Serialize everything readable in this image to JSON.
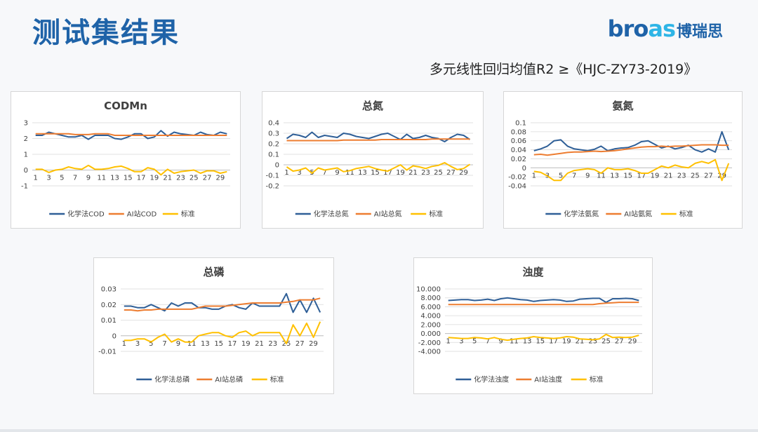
{
  "page": {
    "title": "测试集结果",
    "logo_text_prefix": "bro",
    "logo_text_accent": "as",
    "logo_text_cn": "博瑞思",
    "subtitle": "多元线性回归均值R2 ≥《HJC-ZY73-2019》"
  },
  "colors": {
    "series": [
      "#2f5f97",
      "#ed7d31",
      "#ffc000"
    ],
    "title": "#1f63a8",
    "grid": "#d9d9d9"
  },
  "chart_data": [
    {
      "id": "codmn",
      "type": "line",
      "title": "CODMn",
      "categories": [
        "1",
        "2",
        "3",
        "4",
        "5",
        "6",
        "7",
        "8",
        "9",
        "10",
        "11",
        "12",
        "13",
        "14",
        "15",
        "16",
        "17",
        "18",
        "19",
        "20",
        "21",
        "22",
        "23",
        "24",
        "25",
        "26",
        "27",
        "28",
        "29",
        "30"
      ],
      "tick_labels": [
        "1",
        "3",
        "5",
        "7",
        "9",
        "11",
        "13",
        "15",
        "17",
        "19",
        "21",
        "23",
        "25",
        "27",
        "29"
      ],
      "ylim": [
        -1,
        3
      ],
      "yticks": [
        -1,
        0,
        1,
        2,
        3
      ],
      "ytick_labels": [
        "-1",
        "0",
        "1",
        "2",
        "3"
      ],
      "series": [
        {
          "name": "化学法COD",
          "values": [
            2.2,
            2.2,
            2.4,
            2.3,
            2.2,
            2.1,
            2.1,
            2.2,
            1.95,
            2.2,
            2.2,
            2.2,
            2.0,
            1.95,
            2.1,
            2.3,
            2.3,
            2.0,
            2.1,
            2.5,
            2.15,
            2.4,
            2.3,
            2.25,
            2.2,
            2.4,
            2.25,
            2.2,
            2.4,
            2.3
          ]
        },
        {
          "name": "AI站COD",
          "values": [
            2.3,
            2.3,
            2.3,
            2.3,
            2.3,
            2.3,
            2.25,
            2.25,
            2.25,
            2.3,
            2.3,
            2.3,
            2.2,
            2.2,
            2.2,
            2.2,
            2.2,
            2.2,
            2.2,
            2.2,
            2.2,
            2.2,
            2.2,
            2.2,
            2.2,
            2.2,
            2.2,
            2.2,
            2.2,
            2.2
          ]
        },
        {
          "name": "标准",
          "values": [
            0.05,
            0.05,
            -0.15,
            0,
            0.05,
            0.2,
            0.1,
            0.05,
            0.3,
            0.05,
            0.05,
            0.1,
            0.2,
            0.25,
            0.1,
            -0.1,
            -0.1,
            0.15,
            0.05,
            -0.3,
            0.05,
            -0.2,
            -0.1,
            -0.05,
            0,
            -0.2,
            -0.05,
            -0.05,
            -0.2,
            -0.1
          ]
        }
      ],
      "legend_position": "bottom"
    },
    {
      "id": "tn",
      "type": "line",
      "title": "总氮",
      "categories": [
        "1",
        "2",
        "3",
        "4",
        "5",
        "6",
        "7",
        "8",
        "9",
        "10",
        "11",
        "12",
        "13",
        "14",
        "15",
        "16",
        "17",
        "18",
        "19",
        "20",
        "21",
        "22",
        "23",
        "24",
        "25",
        "26",
        "27",
        "28",
        "29",
        "30"
      ],
      "tick_labels": [
        "1",
        "3",
        "5",
        "7",
        "9",
        "11",
        "13",
        "15",
        "17",
        "19",
        "21",
        "23",
        "25",
        "27",
        "29"
      ],
      "ylim": [
        -0.2,
        0.4
      ],
      "yticks": [
        -0.2,
        -0.1,
        0,
        0.1,
        0.2,
        0.3,
        0.4
      ],
      "ytick_labels": [
        "-0.2",
        "-0.1",
        "0",
        "0.1",
        "0.2",
        "0.3",
        "0.4"
      ],
      "series": [
        {
          "name": "化学法总氮",
          "values": [
            0.25,
            0.29,
            0.28,
            0.26,
            0.31,
            0.26,
            0.28,
            0.27,
            0.26,
            0.3,
            0.29,
            0.27,
            0.26,
            0.25,
            0.27,
            0.29,
            0.3,
            0.27,
            0.24,
            0.29,
            0.25,
            0.26,
            0.28,
            0.26,
            0.25,
            0.22,
            0.26,
            0.29,
            0.28,
            0.24
          ]
        },
        {
          "name": "AI站总氮",
          "values": [
            0.23,
            0.23,
            0.23,
            0.23,
            0.23,
            0.23,
            0.23,
            0.23,
            0.23,
            0.235,
            0.235,
            0.235,
            0.235,
            0.235,
            0.235,
            0.24,
            0.24,
            0.24,
            0.24,
            0.24,
            0.24,
            0.24,
            0.24,
            0.245,
            0.245,
            0.245,
            0.245,
            0.245,
            0.245,
            0.245
          ]
        },
        {
          "name": "标准",
          "values": [
            -0.02,
            -0.06,
            -0.05,
            -0.03,
            -0.08,
            -0.03,
            -0.05,
            -0.04,
            -0.03,
            -0.065,
            -0.055,
            -0.035,
            -0.025,
            -0.015,
            -0.035,
            -0.05,
            -0.06,
            -0.03,
            0.0,
            -0.05,
            -0.01,
            -0.02,
            -0.035,
            -0.015,
            -0.005,
            0.02,
            -0.015,
            -0.045,
            -0.035,
            0.005
          ]
        }
      ],
      "legend_position": "bottom"
    },
    {
      "id": "nh3",
      "type": "line",
      "title": "氨氮",
      "categories": [
        "1",
        "2",
        "3",
        "4",
        "5",
        "6",
        "7",
        "8",
        "9",
        "10",
        "11",
        "12",
        "13",
        "14",
        "15",
        "16",
        "17",
        "18",
        "19",
        "20",
        "21",
        "22",
        "23",
        "24",
        "25",
        "26",
        "27",
        "28",
        "29",
        "30"
      ],
      "tick_labels": [
        "1",
        "3",
        "5",
        "7",
        "9",
        "11",
        "13",
        "15",
        "17",
        "19",
        "21",
        "23",
        "25",
        "27",
        "29"
      ],
      "ylim": [
        -0.04,
        0.1
      ],
      "yticks": [
        -0.04,
        -0.02,
        0,
        0.02,
        0.04,
        0.06,
        0.08,
        0.1
      ],
      "ytick_labels": [
        "-0.04",
        "-0.02",
        "0",
        "0.02",
        "0.04",
        "0.06",
        "0.08",
        "0.1"
      ],
      "series": [
        {
          "name": "化学法氨氮",
          "values": [
            0.038,
            0.042,
            0.048,
            0.06,
            0.062,
            0.048,
            0.042,
            0.04,
            0.038,
            0.041,
            0.048,
            0.038,
            0.042,
            0.044,
            0.045,
            0.05,
            0.058,
            0.06,
            0.052,
            0.044,
            0.048,
            0.042,
            0.045,
            0.05,
            0.04,
            0.035,
            0.042,
            0.035,
            0.08,
            0.04
          ]
        },
        {
          "name": "AI站氨氮",
          "values": [
            0.029,
            0.03,
            0.028,
            0.03,
            0.032,
            0.034,
            0.035,
            0.035,
            0.036,
            0.037,
            0.036,
            0.037,
            0.038,
            0.04,
            0.042,
            0.044,
            0.046,
            0.047,
            0.047,
            0.048,
            0.047,
            0.048,
            0.048,
            0.049,
            0.05,
            0.051,
            0.051,
            0.051,
            0.05,
            0.05
          ]
        },
        {
          "name": "标准",
          "values": [
            -0.008,
            -0.01,
            -0.018,
            -0.028,
            -0.028,
            -0.012,
            -0.006,
            -0.004,
            -0.002,
            -0.004,
            -0.012,
            0.0,
            -0.004,
            -0.004,
            -0.002,
            -0.006,
            -0.012,
            -0.012,
            -0.004,
            0.004,
            0.0,
            0.006,
            0.002,
            0.0,
            0.01,
            0.014,
            0.01,
            0.018,
            -0.028,
            0.01
          ]
        }
      ],
      "legend_position": "bottom"
    },
    {
      "id": "tp",
      "type": "line",
      "title": "总磷",
      "categories": [
        "1",
        "2",
        "3",
        "4",
        "5",
        "6",
        "7",
        "8",
        "9",
        "10",
        "11",
        "12",
        "13",
        "14",
        "15",
        "16",
        "17",
        "18",
        "19",
        "20",
        "21",
        "22",
        "23",
        "24",
        "25",
        "26",
        "27",
        "28",
        "29",
        "30"
      ],
      "tick_labels": [
        "1",
        "3",
        "5",
        "7",
        "9",
        "11",
        "13",
        "15",
        "17",
        "19",
        "21",
        "23",
        "25",
        "27",
        "29"
      ],
      "ylim": [
        -0.01,
        0.03
      ],
      "yticks": [
        -0.01,
        0,
        0.01,
        0.02,
        0.03
      ],
      "ytick_labels": [
        "-0.01",
        "0",
        "0.01",
        "0.02",
        "0.03"
      ],
      "series": [
        {
          "name": "化学法总磷",
          "values": [
            0.019,
            0.019,
            0.018,
            0.018,
            0.02,
            0.018,
            0.016,
            0.021,
            0.019,
            0.021,
            0.021,
            0.018,
            0.018,
            0.017,
            0.017,
            0.019,
            0.02,
            0.018,
            0.017,
            0.021,
            0.019,
            0.019,
            0.019,
            0.019,
            0.027,
            0.015,
            0.023,
            0.015,
            0.024,
            0.015
          ]
        },
        {
          "name": "AI站总磷",
          "values": [
            0.0165,
            0.0165,
            0.016,
            0.0165,
            0.0165,
            0.017,
            0.017,
            0.017,
            0.017,
            0.017,
            0.017,
            0.018,
            0.019,
            0.019,
            0.019,
            0.019,
            0.0195,
            0.02,
            0.0205,
            0.021,
            0.021,
            0.021,
            0.021,
            0.021,
            0.0215,
            0.022,
            0.023,
            0.023,
            0.023,
            0.024
          ]
        },
        {
          "name": "标准",
          "values": [
            -0.003,
            -0.003,
            -0.002,
            -0.002,
            -0.004,
            -0.001,
            0.001,
            -0.004,
            -0.002,
            -0.004,
            -0.004,
            0.0,
            0.001,
            0.002,
            0.002,
            0.0,
            -0.001,
            0.002,
            0.003,
            0.0,
            0.002,
            0.002,
            0.002,
            0.002,
            -0.005,
            0.007,
            0.0,
            0.008,
            -0.001,
            0.009
          ]
        }
      ],
      "legend_position": "bottom"
    },
    {
      "id": "turbidity",
      "type": "line",
      "title": "浊度",
      "categories": [
        "1",
        "2",
        "3",
        "4",
        "5",
        "6",
        "7",
        "8",
        "9",
        "10",
        "11",
        "12",
        "13",
        "14",
        "15",
        "16",
        "17",
        "18",
        "19",
        "20",
        "21",
        "22",
        "23",
        "24",
        "25",
        "26",
        "27",
        "28",
        "29",
        "30"
      ],
      "tick_labels": [
        "1",
        "3",
        "5",
        "7",
        "9",
        "11",
        "13",
        "15",
        "17",
        "19",
        "21",
        "23",
        "25",
        "27",
        "29"
      ],
      "ylim": [
        -4,
        10
      ],
      "yticks": [
        -4,
        -2,
        0,
        2,
        4,
        6,
        8,
        10
      ],
      "ytick_labels": [
        "-4.000",
        "-2.000",
        "0.000",
        "2.000",
        "4.000",
        "6.000",
        "8.000",
        "10.000"
      ],
      "series": [
        {
          "name": "化学法浊度",
          "values": [
            7.4,
            7.5,
            7.6,
            7.6,
            7.4,
            7.5,
            7.7,
            7.4,
            7.8,
            8.0,
            7.8,
            7.6,
            7.5,
            7.2,
            7.4,
            7.5,
            7.6,
            7.5,
            7.2,
            7.3,
            7.7,
            7.8,
            7.9,
            7.9,
            7.0,
            7.8,
            7.8,
            7.9,
            7.8,
            7.4
          ]
        },
        {
          "name": "AI站浊度",
          "values": [
            6.5,
            6.5,
            6.5,
            6.5,
            6.5,
            6.5,
            6.5,
            6.5,
            6.5,
            6.5,
            6.5,
            6.5,
            6.5,
            6.5,
            6.5,
            6.5,
            6.5,
            6.5,
            6.5,
            6.5,
            6.5,
            6.5,
            6.5,
            6.7,
            6.8,
            6.9,
            7.0,
            7.0,
            7.0,
            7.0
          ]
        },
        {
          "name": "标准",
          "values": [
            -0.9,
            -1.0,
            -1.1,
            -1.1,
            -0.9,
            -1.0,
            -1.2,
            -0.9,
            -1.3,
            -1.5,
            -1.3,
            -1.1,
            -1.0,
            -0.7,
            -0.9,
            -1.0,
            -1.1,
            -1.0,
            -0.7,
            -0.8,
            -1.2,
            -1.3,
            -1.4,
            -1.2,
            -0.2,
            -0.9,
            -0.8,
            -0.9,
            -0.8,
            -0.4
          ]
        }
      ],
      "legend_position": "bottom"
    }
  ]
}
